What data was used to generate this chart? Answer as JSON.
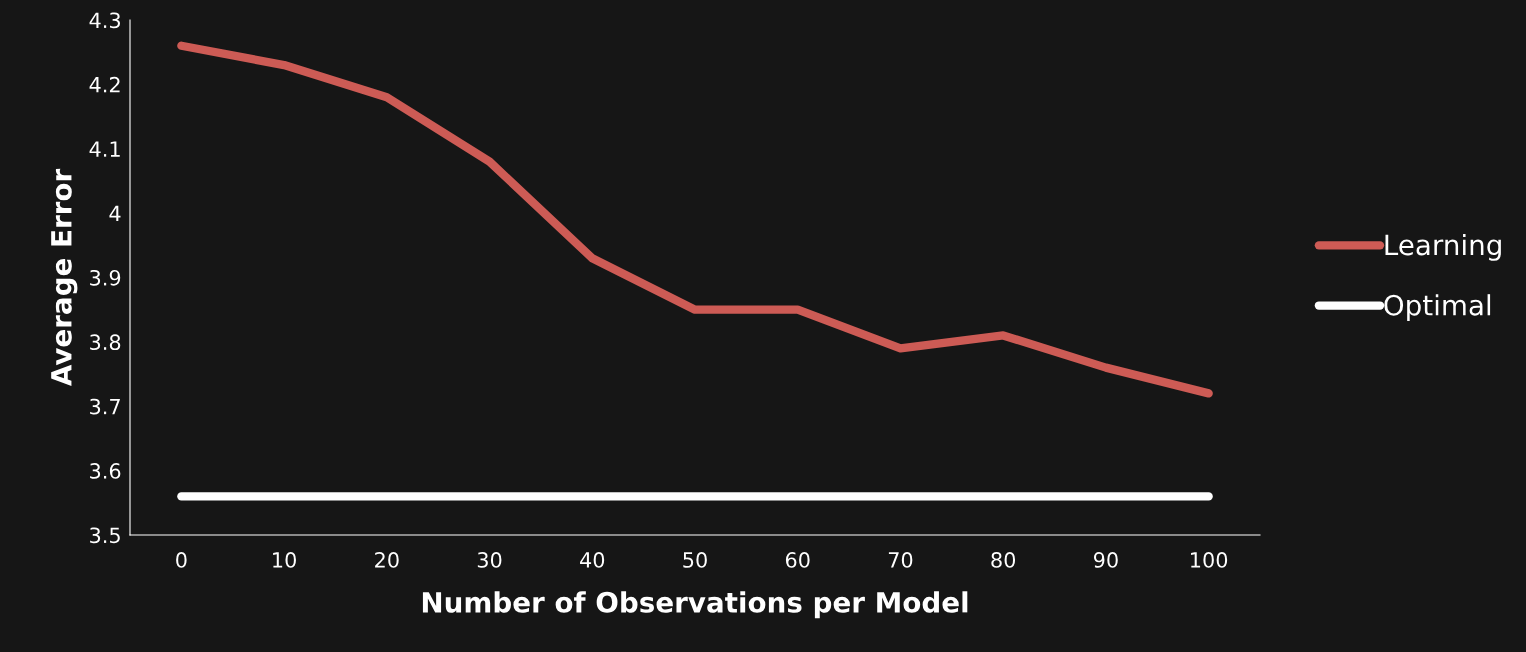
{
  "chart_data": {
    "type": "line",
    "xlabel": "Number of Observations per Model",
    "ylabel": "Average Error",
    "categories": [
      "0",
      "10",
      "20",
      "30",
      "40",
      "50",
      "60",
      "70",
      "80",
      "90",
      "100"
    ],
    "series": [
      {
        "name": "Learning",
        "color": "#cd5b55",
        "values": [
          4.26,
          4.23,
          4.18,
          4.08,
          3.93,
          3.85,
          3.85,
          3.79,
          3.81,
          3.76,
          3.72
        ]
      },
      {
        "name": "Optimal",
        "color": "#ffffff",
        "values": [
          3.56,
          3.56,
          3.56,
          3.56,
          3.56,
          3.56,
          3.56,
          3.56,
          3.56,
          3.56,
          3.56
        ]
      }
    ],
    "ylim": [
      3.5,
      4.3
    ],
    "yticks": [
      3.5,
      3.6,
      3.7,
      3.8,
      3.9,
      {
        "value": 4.0,
        "label": "4"
      },
      4.1,
      4.2,
      4.3
    ],
    "grid": false,
    "legend": "right",
    "marker": "none",
    "line_style": "solid"
  }
}
